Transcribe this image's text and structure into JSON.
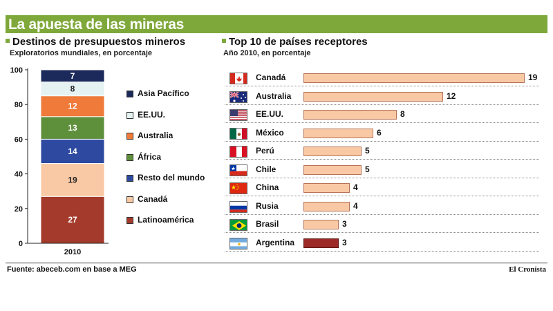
{
  "header": {
    "title": "La apuesta de las mineras"
  },
  "left": {
    "title": "Destinos de presupuestos mineros",
    "subtitle": "Exploratorios mundiales, en porcentaje"
  },
  "right": {
    "title": "Top 10 de países receptores",
    "subtitle": "Año 2010, en porcentaje"
  },
  "footer": {
    "source": "Fuente: abeceb.com en base a MEG",
    "brand": "El Cronista"
  },
  "colors": {
    "title_bar": "#7fa83a",
    "bar_fill": "#f8c9a4",
    "argentina_fill": "#9c2a26"
  },
  "chart_data": [
    {
      "type": "bar",
      "subtype": "stacked",
      "categories": [
        "2010"
      ],
      "ylim": [
        0,
        100
      ],
      "yticks": [
        0,
        20,
        40,
        60,
        80,
        100
      ],
      "series": [
        {
          "name": "Latinoamérica",
          "values": [
            27
          ],
          "color": "#a33a2b"
        },
        {
          "name": "Canadá",
          "values": [
            19
          ],
          "color": "#f8c9a4"
        },
        {
          "name": "Resto del mundo",
          "values": [
            14
          ],
          "color": "#2e49a0"
        },
        {
          "name": "África",
          "values": [
            13
          ],
          "color": "#5e8f3a"
        },
        {
          "name": "Australia",
          "values": [
            12
          ],
          "color": "#ef7a3a"
        },
        {
          "name": "EE.UU.",
          "values": [
            8
          ],
          "color": "#e5f2f2"
        },
        {
          "name": "Asia Pacífico",
          "values": [
            7
          ],
          "color": "#1b2a5a"
        }
      ],
      "legend_order": [
        "Asia Pacífico",
        "EE.UU.",
        "Australia",
        "África",
        "Resto del mundo",
        "Canadá",
        "Latinoamérica"
      ]
    },
    {
      "type": "bar",
      "orientation": "horizontal",
      "xlim": [
        0,
        19
      ],
      "categories": [
        "Canadá",
        "Australia",
        "EE.UU.",
        "México",
        "Perú",
        "Chile",
        "China",
        "Rusia",
        "Brasil",
        "Argentina"
      ],
      "values": [
        19,
        12,
        8,
        6,
        5,
        5,
        4,
        4,
        3,
        3
      ],
      "highlight": "Argentina",
      "flag_icons": [
        "canada-flag-icon",
        "australia-flag-icon",
        "usa-flag-icon",
        "mexico-flag-icon",
        "peru-flag-icon",
        "chile-flag-icon",
        "china-flag-icon",
        "russia-flag-icon",
        "brazil-flag-icon",
        "argentina-flag-icon"
      ]
    }
  ]
}
